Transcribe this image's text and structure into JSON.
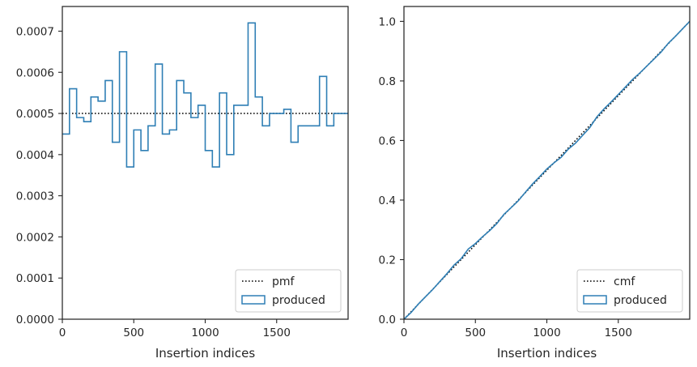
{
  "chart_data": [
    {
      "type": "line",
      "xlabel": "Insertion indices",
      "ylabel": "",
      "xlim": [
        0,
        2000
      ],
      "ylim": [
        0,
        0.00076
      ],
      "grid": false,
      "legend_position": "lower-right",
      "xticks": [
        0,
        500,
        1000,
        1500
      ],
      "xtick_labels": [
        "0",
        "500",
        "1000",
        "1500"
      ],
      "yticks": [
        0,
        0.0001,
        0.0002,
        0.0003,
        0.0004,
        0.0005,
        0.0006,
        0.0007
      ],
      "ytick_labels": [
        "0.0000",
        "0.0001",
        "0.0002",
        "0.0003",
        "0.0004",
        "0.0005",
        "0.0006",
        "0.0007"
      ],
      "series": [
        {
          "name": "pmf",
          "style": "dotted",
          "color": "#000000",
          "x": [
            0,
            2000
          ],
          "y": [
            0.0005,
            0.0005
          ]
        },
        {
          "name": "produced",
          "style": "step",
          "color": "#2f7fb5",
          "bin_edges": [
            0,
            50,
            100,
            150,
            200,
            250,
            300,
            350,
            400,
            450,
            500,
            550,
            600,
            650,
            700,
            750,
            800,
            850,
            900,
            950,
            1000,
            1050,
            1100,
            1150,
            1200,
            1250,
            1300,
            1350,
            1400,
            1450,
            1500,
            1550,
            1600,
            1650,
            1700,
            1750,
            1800,
            1850,
            1900,
            1950,
            2000
          ],
          "values": [
            0.00045,
            0.00056,
            0.00049,
            0.00048,
            0.00054,
            0.00053,
            0.00058,
            0.00043,
            0.00065,
            0.00037,
            0.00046,
            0.00041,
            0.00047,
            0.00062,
            0.00045,
            0.00046,
            0.00058,
            0.00055,
            0.00049,
            0.00052,
            0.00041,
            0.00037,
            0.00055,
            0.0004,
            0.00052,
            0.00052,
            0.00072,
            0.00054,
            0.00047,
            0.0005,
            0.0005,
            0.00051,
            0.00043,
            0.00047,
            0.00047,
            0.00047,
            0.00059,
            0.00047,
            0.0005,
            0.0005
          ]
        }
      ]
    },
    {
      "type": "line",
      "xlabel": "Insertion indices",
      "ylabel": "",
      "xlim": [
        0,
        2000
      ],
      "ylim": [
        0,
        1.05
      ],
      "grid": false,
      "legend_position": "lower-right",
      "xticks": [
        0,
        500,
        1000,
        1500
      ],
      "xtick_labels": [
        "0",
        "500",
        "1000",
        "1500"
      ],
      "yticks": [
        0,
        0.2,
        0.4,
        0.6,
        0.8,
        1.0
      ],
      "ytick_labels": [
        "0.0",
        "0.2",
        "0.4",
        "0.6",
        "0.8",
        "1.0"
      ],
      "series": [
        {
          "name": "cmf",
          "style": "dotted",
          "color": "#000000",
          "x": [
            0,
            2000
          ],
          "y": [
            0,
            1.0
          ]
        },
        {
          "name": "produced",
          "style": "step",
          "color": "#2f7fb5",
          "x": [
            0,
            50,
            100,
            150,
            200,
            250,
            300,
            350,
            400,
            450,
            500,
            550,
            600,
            650,
            700,
            750,
            800,
            850,
            900,
            950,
            1000,
            1050,
            1100,
            1150,
            1200,
            1250,
            1300,
            1350,
            1400,
            1450,
            1500,
            1550,
            1600,
            1650,
            1700,
            1750,
            1800,
            1850,
            1900,
            1950,
            2000
          ],
          "y": [
            0,
            0.0225,
            0.0505,
            0.075,
            0.099,
            0.126,
            0.1525,
            0.1815,
            0.203,
            0.2355,
            0.254,
            0.277,
            0.2975,
            0.321,
            0.352,
            0.3745,
            0.3975,
            0.4265,
            0.454,
            0.4785,
            0.5045,
            0.525,
            0.5435,
            0.571,
            0.591,
            0.617,
            0.643,
            0.679,
            0.706,
            0.7295,
            0.7545,
            0.7795,
            0.805,
            0.8265,
            0.85,
            0.8735,
            0.897,
            0.9265,
            0.95,
            0.975,
            1.0
          ]
        }
      ]
    }
  ]
}
